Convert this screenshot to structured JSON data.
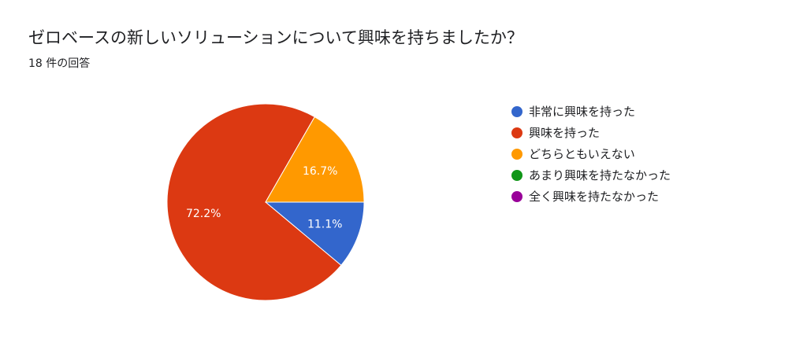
{
  "question": {
    "title": "ゼロベースの新しいソリューションについて興味を持ちましたか？",
    "response_count": "18 件の回答"
  },
  "chart_data": {
    "type": "pie",
    "title": "ゼロベースの新しいソリューションについて興味を持ちましたか？",
    "categories": [
      "非常に興味を持った",
      "興味を持った",
      "どちらともいえない",
      "あまり興味を持たなかった",
      "全く興味を持たなかった"
    ],
    "values": [
      11.1,
      72.2,
      16.7,
      0,
      0
    ],
    "data_labels": [
      "11.1%",
      "72.2%",
      "16.7%",
      "",
      ""
    ],
    "colors": [
      "#3366cc",
      "#dc3912",
      "#ff9900",
      "#109618",
      "#990099"
    ],
    "legend_position": "right",
    "start_direction": "3 o'clock, clockwise"
  }
}
